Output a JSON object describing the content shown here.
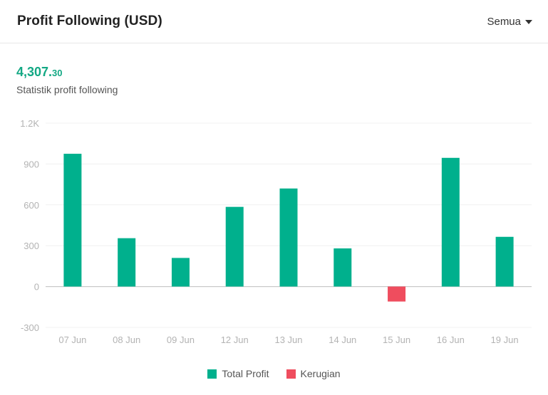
{
  "header": {
    "title": "Profit Following (USD)",
    "filter_label": "Semua"
  },
  "summary": {
    "total_int": "4,307.",
    "total_dec": "30",
    "subtitle": "Statistik profit following"
  },
  "colors": {
    "profit": "#00b08d",
    "loss": "#ef4d5e",
    "accent": "#13a884"
  },
  "legend": {
    "profit_label": "Total Profit",
    "loss_label": "Kerugian"
  },
  "chart_data": {
    "type": "bar",
    "categories": [
      "07 Jun",
      "08 Jun",
      "09 Jun",
      "12 Jun",
      "13 Jun",
      "14 Jun",
      "15 Jun",
      "16 Jun",
      "19 Jun"
    ],
    "values": [
      975,
      355,
      210,
      585,
      720,
      280,
      -110,
      945,
      365
    ],
    "y_ticks": [
      -300,
      0,
      300,
      600,
      900,
      1200
    ],
    "y_tick_labels": [
      "-300",
      "0",
      "300",
      "600",
      "900",
      "1.2K"
    ],
    "ylim": [
      -300,
      1200
    ],
    "grid": true,
    "legend_position": "bottom-center",
    "series": [
      {
        "name": "Total Profit",
        "color": "#00b08d"
      },
      {
        "name": "Kerugian",
        "color": "#ef4d5e"
      }
    ]
  }
}
